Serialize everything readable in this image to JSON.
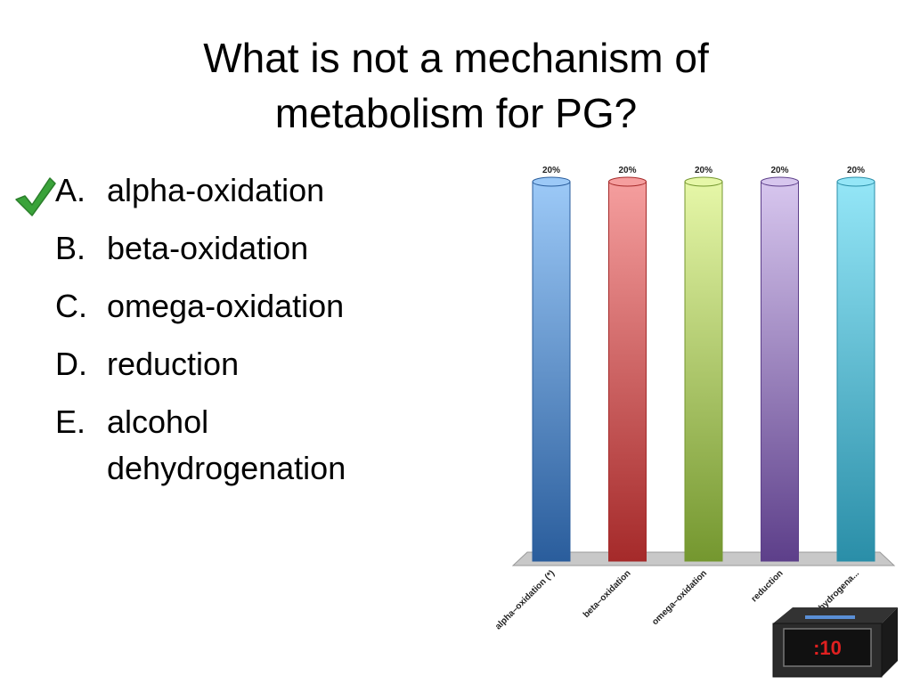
{
  "slide": {
    "title_line1": "What is not a mechanism of",
    "title_line2": "metabolism for PG?"
  },
  "answers": [
    {
      "letter": "A.",
      "text": "alpha-oxidation",
      "correct": true
    },
    {
      "letter": "B.",
      "text": "beta-oxidation",
      "correct": false
    },
    {
      "letter": "C.",
      "text": "omega-oxidation",
      "correct": false
    },
    {
      "letter": "D.",
      "text": "reduction",
      "correct": false
    },
    {
      "letter": "E.",
      "text": "alcohol dehydrogenation",
      "correct": false
    }
  ],
  "timer": {
    "label": ":10"
  },
  "colors": {
    "check": "#3aa33a",
    "timer_text": "#e02020",
    "floor": "#c8c8c8"
  },
  "chart_data": {
    "type": "bar",
    "categories": [
      "alpha–oxidation (*)",
      "beta–oxidation",
      "omega–oxidation",
      "reduction",
      "alcohol dehydrogena..."
    ],
    "values": [
      20,
      20,
      20,
      20,
      20
    ],
    "value_labels": [
      "20%",
      "20%",
      "20%",
      "20%",
      "20%"
    ],
    "ylim": [
      0,
      20
    ],
    "grid": false,
    "series_colors": [
      {
        "top": "#9cc9f7",
        "bottom": "#2a5d9c"
      },
      {
        "top": "#f59e9e",
        "bottom": "#a52a2a"
      },
      {
        "top": "#e6f7a8",
        "bottom": "#74972f"
      },
      {
        "top": "#d7c6ee",
        "bottom": "#5d3f8a"
      },
      {
        "top": "#94e6f7",
        "bottom": "#2a8ea8"
      }
    ]
  }
}
